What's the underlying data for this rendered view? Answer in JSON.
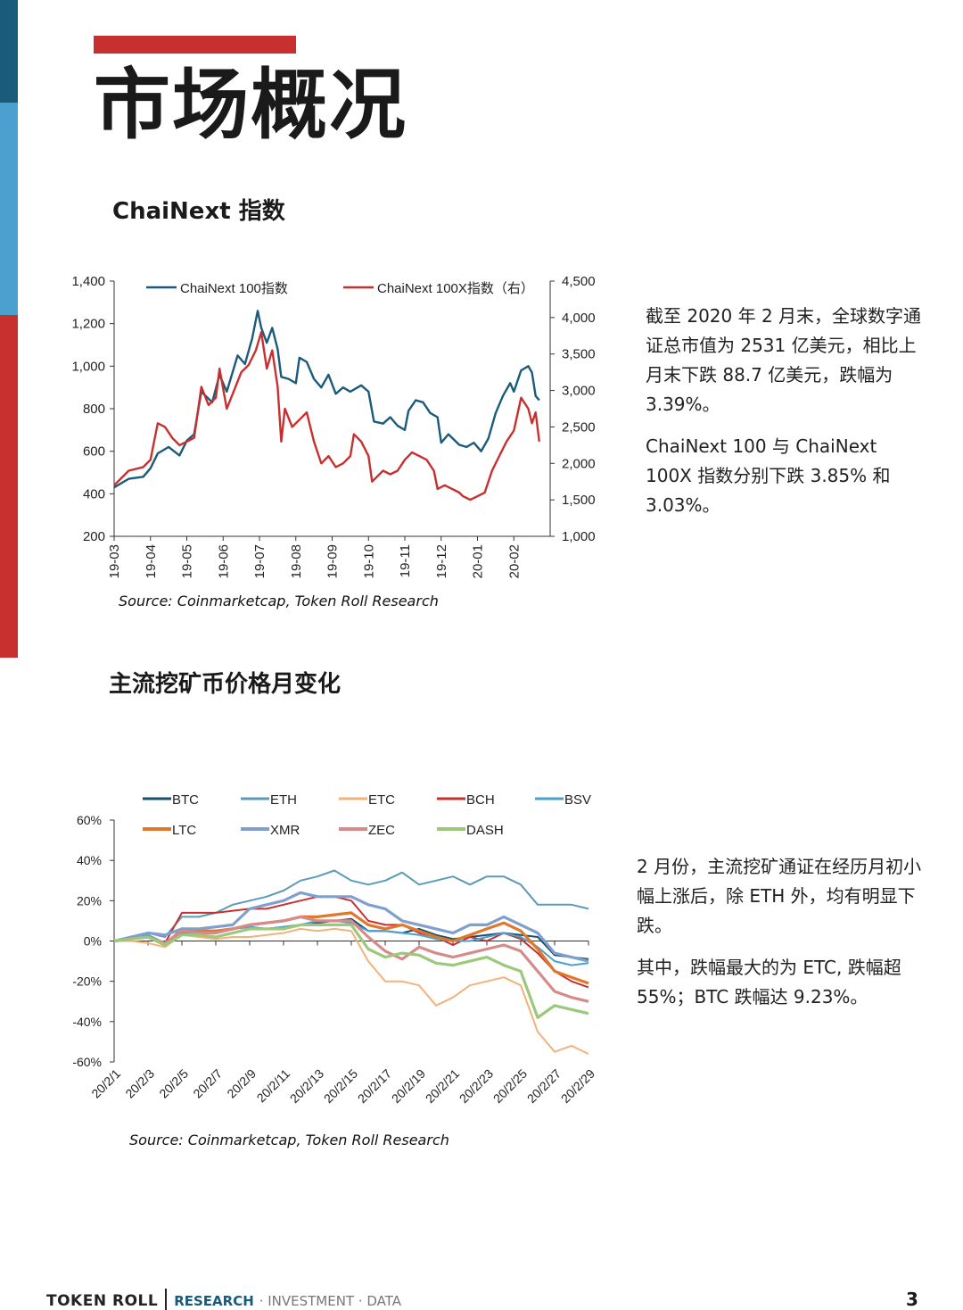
{
  "page": {
    "title": "市场概况",
    "page_number": "3",
    "footer": {
      "brand": "TOKEN ROLL",
      "research": "RESEARCH",
      "rest": "· INVESTMENT · DATA"
    },
    "accent_colors": {
      "dark_blue": "#1a5a7a",
      "light_blue": "#4aa0cf",
      "red": "#c8302f"
    }
  },
  "section1": {
    "title": "ChaiNext 指数",
    "source": "Source: Coinmarketcap, Token Roll Research",
    "paragraphs": [
      "截至 2020 年 2 月末，全球数字通证总市值为 2531 亿美元，相比上月末下跌 88.7 亿美元，跌幅为 3.39%。",
      "ChaiNext 100 与 ChaiNext 100X 指数分别下跌 3.85% 和 3.03%。"
    ]
  },
  "section2": {
    "title": "主流挖矿币价格月变化",
    "source": "Source: Coinmarketcap, Token Roll Research",
    "paragraphs": [
      "2 月份，主流挖矿通证在经历月初小幅上涨后，除 ETH 外，均有明显下跌。",
      "其中，跌幅最大的为 ETC, 跌幅超 55%；BTC 跌幅达 9.23%。"
    ]
  },
  "chart_data": [
    {
      "type": "line",
      "title": "",
      "x_tick_labels": [
        "19-03",
        "19-04",
        "19-05",
        "19-06",
        "19-07",
        "19-08",
        "19-09",
        "19-10",
        "19-11",
        "19-12",
        "20-01",
        "20-02"
      ],
      "x_range": [
        0,
        12
      ],
      "ylim_left": [
        200,
        1400
      ],
      "yticks_left": [
        "1,400",
        "1,200",
        "1,000",
        "800",
        "600",
        "400",
        "200"
      ],
      "ylim_right": [
        1000,
        4500
      ],
      "yticks_right": [
        "4,500",
        "4,000",
        "3,500",
        "3,000",
        "2,500",
        "2,000",
        "1,500",
        "1,000"
      ],
      "legend_position": "top",
      "series": [
        {
          "name": "ChaiNext 100指数",
          "axis": "left",
          "color": "#1a5a7a",
          "points": [
            [
              0,
              430
            ],
            [
              0.4,
              470
            ],
            [
              0.8,
              480
            ],
            [
              1.0,
              520
            ],
            [
              1.2,
              590
            ],
            [
              1.5,
              620
            ],
            [
              1.8,
              580
            ],
            [
              2.0,
              650
            ],
            [
              2.2,
              680
            ],
            [
              2.4,
              880
            ],
            [
              2.7,
              830
            ],
            [
              2.9,
              960
            ],
            [
              3.1,
              880
            ],
            [
              3.4,
              1050
            ],
            [
              3.6,
              1010
            ],
            [
              3.8,
              1130
            ],
            [
              3.95,
              1260
            ],
            [
              4.05,
              1180
            ],
            [
              4.2,
              1110
            ],
            [
              4.35,
              1180
            ],
            [
              4.5,
              1080
            ],
            [
              4.6,
              950
            ],
            [
              4.8,
              940
            ],
            [
              5.0,
              920
            ],
            [
              5.1,
              1040
            ],
            [
              5.3,
              1020
            ],
            [
              5.5,
              940
            ],
            [
              5.7,
              900
            ],
            [
              5.9,
              960
            ],
            [
              6.1,
              870
            ],
            [
              6.3,
              900
            ],
            [
              6.5,
              880
            ],
            [
              6.8,
              910
            ],
            [
              7.0,
              880
            ],
            [
              7.15,
              740
            ],
            [
              7.4,
              730
            ],
            [
              7.6,
              760
            ],
            [
              7.8,
              720
            ],
            [
              8.0,
              700
            ],
            [
              8.1,
              790
            ],
            [
              8.3,
              840
            ],
            [
              8.5,
              830
            ],
            [
              8.7,
              780
            ],
            [
              8.9,
              760
            ],
            [
              9.0,
              640
            ],
            [
              9.2,
              680
            ],
            [
              9.5,
              630
            ],
            [
              9.7,
              620
            ],
            [
              9.9,
              640
            ],
            [
              10.1,
              600
            ],
            [
              10.3,
              660
            ],
            [
              10.5,
              780
            ],
            [
              10.7,
              860
            ],
            [
              10.9,
              920
            ],
            [
              11.0,
              880
            ],
            [
              11.2,
              980
            ],
            [
              11.4,
              1000
            ],
            [
              11.5,
              970
            ],
            [
              11.6,
              860
            ],
            [
              11.7,
              840
            ]
          ]
        },
        {
          "name": "ChaiNext 100X指数（右）",
          "axis": "right",
          "color": "#c8302f",
          "points": [
            [
              0,
              1700
            ],
            [
              0.4,
              1900
            ],
            [
              0.8,
              1950
            ],
            [
              1.0,
              2050
            ],
            [
              1.2,
              2550
            ],
            [
              1.4,
              2500
            ],
            [
              1.6,
              2350
            ],
            [
              1.8,
              2250
            ],
            [
              2.0,
              2300
            ],
            [
              2.2,
              2350
            ],
            [
              2.4,
              3050
            ],
            [
              2.6,
              2800
            ],
            [
              2.8,
              2900
            ],
            [
              2.9,
              3300
            ],
            [
              3.1,
              2750
            ],
            [
              3.3,
              3000
            ],
            [
              3.5,
              3250
            ],
            [
              3.7,
              3350
            ],
            [
              3.9,
              3550
            ],
            [
              4.05,
              3800
            ],
            [
              4.2,
              3300
            ],
            [
              4.35,
              3550
            ],
            [
              4.5,
              3050
            ],
            [
              4.6,
              2300
            ],
            [
              4.7,
              2750
            ],
            [
              4.9,
              2500
            ],
            [
              5.1,
              2600
            ],
            [
              5.3,
              2700
            ],
            [
              5.5,
              2300
            ],
            [
              5.7,
              2000
            ],
            [
              5.9,
              2100
            ],
            [
              6.1,
              1950
            ],
            [
              6.3,
              2000
            ],
            [
              6.5,
              2100
            ],
            [
              6.6,
              2400
            ],
            [
              6.8,
              2300
            ],
            [
              7.0,
              2100
            ],
            [
              7.1,
              1750
            ],
            [
              7.4,
              1900
            ],
            [
              7.6,
              1850
            ],
            [
              7.8,
              1900
            ],
            [
              8.0,
              2050
            ],
            [
              8.2,
              2150
            ],
            [
              8.4,
              2100
            ],
            [
              8.6,
              2050
            ],
            [
              8.8,
              1900
            ],
            [
              8.9,
              1650
            ],
            [
              9.1,
              1700
            ],
            [
              9.3,
              1650
            ],
            [
              9.5,
              1600
            ],
            [
              9.6,
              1550
            ],
            [
              9.8,
              1500
            ],
            [
              10.0,
              1550
            ],
            [
              10.2,
              1600
            ],
            [
              10.4,
              1900
            ],
            [
              10.6,
              2100
            ],
            [
              10.8,
              2300
            ],
            [
              11.0,
              2450
            ],
            [
              11.2,
              2900
            ],
            [
              11.4,
              2750
            ],
            [
              11.5,
              2550
            ],
            [
              11.6,
              2700
            ],
            [
              11.7,
              2300
            ]
          ]
        }
      ]
    },
    {
      "type": "line",
      "title": "",
      "x_tick_labels": [
        "20/2/1",
        "20/2/3",
        "20/2/5",
        "20/2/7",
        "20/2/9",
        "20/2/11",
        "20/2/13",
        "20/2/15",
        "20/2/17",
        "20/2/19",
        "20/2/21",
        "20/2/23",
        "20/2/25",
        "20/2/27",
        "20/2/29"
      ],
      "x_range": [
        1,
        29
      ],
      "ylim": [
        -60,
        60
      ],
      "yticks": [
        "60%",
        "40%",
        "20%",
        "0%",
        "-20%",
        "-40%",
        "-60%"
      ],
      "legend_position": "top",
      "series": [
        {
          "name": "BTC",
          "color": "#1a4f6e",
          "values": [
            0,
            1,
            2,
            -2,
            5,
            4,
            5,
            6,
            7,
            6,
            7,
            8,
            9,
            10,
            11,
            5,
            5,
            4,
            6,
            3,
            1,
            2,
            3,
            4,
            3,
            2,
            -7,
            -8,
            -9
          ]
        },
        {
          "name": "ETH",
          "color": "#5b9bb8",
          "values": [
            0,
            2,
            4,
            2,
            12,
            12,
            14,
            18,
            20,
            22,
            25,
            30,
            32,
            35,
            30,
            28,
            30,
            34,
            28,
            30,
            32,
            28,
            32,
            32,
            28,
            18,
            18,
            18,
            16
          ]
        },
        {
          "name": "ETC",
          "color": "#f2b27a",
          "values": [
            0,
            0,
            -1,
            -3,
            3,
            2,
            1,
            2,
            2,
            3,
            4,
            6,
            5,
            6,
            5,
            -10,
            -20,
            -20,
            -22,
            -32,
            -28,
            -22,
            -20,
            -18,
            -22,
            -45,
            -55,
            -52,
            -56
          ]
        },
        {
          "name": "BCH",
          "color": "#c8302f",
          "values": [
            0,
            1,
            2,
            -1,
            14,
            14,
            14,
            15,
            16,
            16,
            18,
            20,
            22,
            22,
            20,
            10,
            8,
            8,
            4,
            2,
            -2,
            2,
            0,
            4,
            1,
            -6,
            -15,
            -20,
            -23
          ]
        },
        {
          "name": "BSV",
          "color": "#4aa0cf",
          "values": [
            0,
            2,
            3,
            -1,
            4,
            4,
            5,
            6,
            7,
            6,
            7,
            8,
            10,
            10,
            9,
            5,
            5,
            4,
            3,
            1,
            0,
            0,
            2,
            4,
            2,
            -3,
            -10,
            -12,
            -11
          ]
        },
        {
          "name": "LTC",
          "color": "#e0782b",
          "values": [
            0,
            1,
            2,
            -2,
            6,
            5,
            5,
            6,
            8,
            9,
            10,
            12,
            12,
            13,
            14,
            8,
            6,
            8,
            5,
            2,
            0,
            3,
            6,
            9,
            5,
            -4,
            -15,
            -18,
            -21
          ]
        },
        {
          "name": "XMR",
          "color": "#7f9fcf",
          "values": [
            0,
            2,
            4,
            3,
            6,
            6,
            7,
            8,
            16,
            18,
            20,
            24,
            22,
            22,
            22,
            18,
            16,
            10,
            8,
            6,
            4,
            8,
            8,
            12,
            8,
            4,
            -6,
            -8,
            -10
          ]
        },
        {
          "name": "ZEC",
          "color": "#d68a8a",
          "values": [
            0,
            1,
            2,
            -1,
            5,
            4,
            4,
            6,
            8,
            9,
            10,
            12,
            10,
            10,
            10,
            2,
            -5,
            -9,
            -3,
            -6,
            -8,
            -6,
            -4,
            -2,
            -5,
            -15,
            -25,
            -28,
            -30
          ]
        },
        {
          "name": "DASH",
          "color": "#9cc87a",
          "values": [
            0,
            1,
            2,
            -2,
            3,
            3,
            2,
            4,
            6,
            6,
            6,
            8,
            8,
            8,
            8,
            -4,
            -8,
            -6,
            -7,
            -11,
            -12,
            -10,
            -8,
            -12,
            -15,
            -38,
            -32,
            -34,
            -36
          ]
        }
      ]
    }
  ]
}
